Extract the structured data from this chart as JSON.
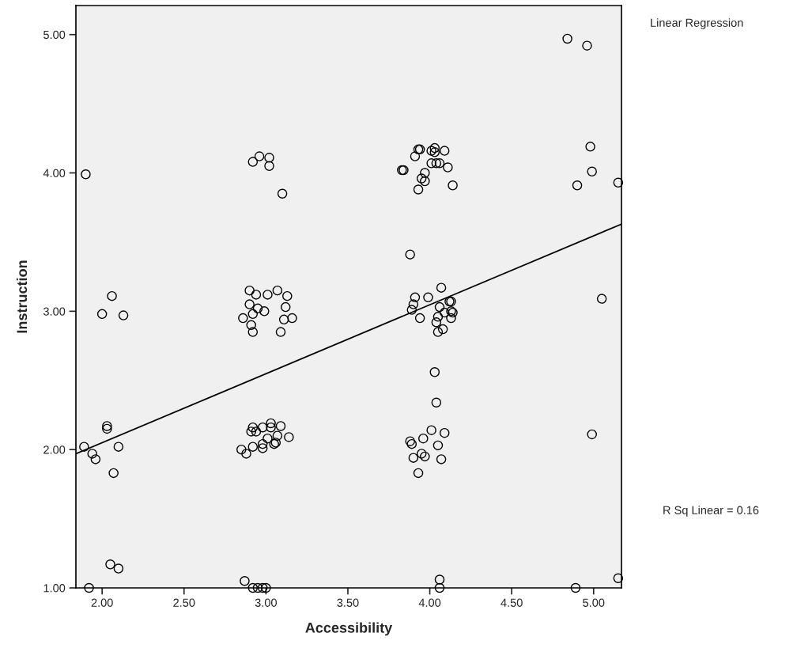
{
  "chart_data": {
    "type": "scatter",
    "xlabel": "Accessibility",
    "ylabel": "Instruction",
    "annotations": [
      "Linear Regression",
      "R Sq Linear = 0.16"
    ],
    "xlim": [
      1.84,
      5.17
    ],
    "ylim": [
      1.0,
      5.21
    ],
    "xticks": [
      {
        "value": 2,
        "label": "2.00"
      },
      {
        "value": 2.5,
        "label": "2.50"
      },
      {
        "value": 3,
        "label": "3.00"
      },
      {
        "value": 3.5,
        "label": "3.50"
      },
      {
        "value": 4,
        "label": "4.00"
      },
      {
        "value": 4.5,
        "label": "4.50"
      },
      {
        "value": 5,
        "label": "5.00"
      }
    ],
    "yticks": [
      {
        "value": 1,
        "label": "1.00"
      },
      {
        "value": 2,
        "label": "2.00"
      },
      {
        "value": 3,
        "label": "3.00"
      },
      {
        "value": 4,
        "label": "4.00"
      },
      {
        "value": 5,
        "label": "5.00"
      }
    ],
    "grid": false,
    "series": [
      {
        "marker": "circle",
        "color": "#000000",
        "x": [
          1.9,
          2.92,
          2.96,
          3.02,
          3.02,
          3.1,
          2.06,
          2.0,
          2.13,
          2.9,
          2.94,
          3.01,
          3.07,
          3.13,
          2.9,
          2.95,
          2.99,
          3.12,
          2.86,
          2.92,
          2.91,
          2.92,
          3.11,
          3.16,
          3.09,
          2.03,
          2.03,
          1.89,
          1.94,
          1.96,
          2.1,
          2.07,
          2.05,
          2.1,
          1.92,
          2.92,
          2.91,
          2.94,
          2.98,
          3.03,
          3.03,
          3.09,
          3.07,
          3.14,
          3.01,
          3.05,
          3.06,
          2.85,
          2.88,
          2.92,
          2.98,
          2.98,
          2.87,
          2.92,
          2.95,
          2.98,
          3.0,
          4.84,
          4.96,
          4.98,
          4.99,
          4.9,
          5.15,
          3.84,
          3.83,
          3.91,
          3.93,
          3.94,
          4.01,
          4.03,
          4.03,
          4.09,
          4.01,
          4.04,
          4.06,
          4.11,
          3.97,
          3.95,
          3.97,
          3.93,
          4.14,
          3.88,
          4.07,
          3.91,
          3.9,
          3.99,
          4.13,
          4.06,
          3.89,
          3.94,
          4.05,
          4.04,
          4.08,
          4.05,
          4.13,
          4.14,
          4.13,
          4.09,
          4.12,
          4.03,
          4.04,
          4.01,
          4.09,
          3.96,
          3.88,
          3.89,
          4.05,
          3.95,
          3.97,
          3.9,
          4.07,
          3.93,
          4.99,
          5.05,
          4.06,
          4.06,
          4.89,
          5.15
        ],
        "values": [
          3.99,
          4.08,
          4.12,
          4.11,
          4.05,
          3.85,
          3.11,
          2.98,
          2.97,
          3.15,
          3.12,
          3.12,
          3.15,
          3.11,
          3.05,
          3.02,
          3.0,
          3.03,
          2.95,
          2.98,
          2.9,
          2.85,
          2.94,
          2.95,
          2.85,
          2.17,
          2.15,
          2.02,
          1.97,
          1.93,
          2.02,
          1.83,
          1.17,
          1.14,
          1.0,
          2.16,
          2.13,
          2.13,
          2.16,
          2.19,
          2.16,
          2.17,
          2.1,
          2.09,
          2.08,
          2.04,
          2.05,
          2.0,
          1.97,
          2.02,
          2.01,
          2.04,
          1.05,
          1.0,
          1.0,
          1.0,
          1.0,
          4.97,
          4.92,
          4.19,
          4.01,
          3.91,
          3.93,
          4.02,
          4.02,
          4.12,
          4.17,
          4.17,
          4.16,
          4.18,
          4.15,
          4.16,
          4.07,
          4.07,
          4.07,
          4.04,
          4.0,
          3.96,
          3.94,
          3.88,
          3.91,
          3.41,
          3.17,
          3.1,
          3.05,
          3.1,
          3.07,
          3.03,
          3.01,
          2.95,
          2.96,
          2.92,
          2.87,
          2.85,
          3.0,
          2.99,
          2.95,
          2.99,
          3.07,
          2.56,
          2.34,
          2.14,
          2.12,
          2.08,
          2.06,
          2.04,
          2.03,
          1.97,
          1.95,
          1.94,
          1.93,
          1.83,
          2.11,
          3.09,
          1.06,
          1.0,
          1.0,
          1.07
        ]
      },
      {
        "type": "line",
        "color": "#000000",
        "x": [
          1.84,
          5.17
        ],
        "values": [
          1.97,
          3.63
        ]
      }
    ]
  }
}
